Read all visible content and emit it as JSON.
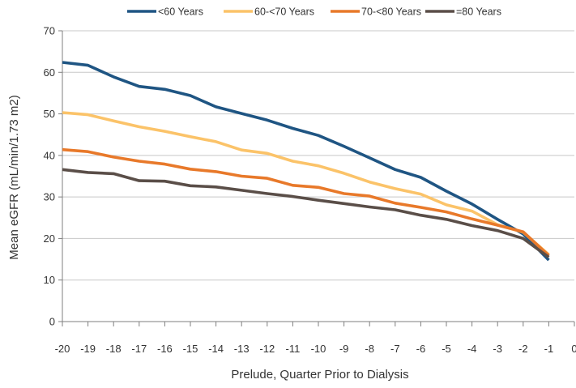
{
  "chart_data": {
    "type": "line",
    "title": "",
    "xlabel": "Prelude, Quarter Prior to Dialysis",
    "ylabel": "Mean eGFR (mL/min/1.73 m2)",
    "xlim": [
      -20,
      0
    ],
    "ylim": [
      0,
      70
    ],
    "x_ticks": [
      -20,
      -19,
      -18,
      -17,
      -16,
      -15,
      -14,
      -13,
      -12,
      -11,
      -10,
      -9,
      -8,
      -7,
      -6,
      -5,
      -4,
      -3,
      -2,
      -1,
      0
    ],
    "y_ticks": [
      0,
      10,
      20,
      30,
      40,
      50,
      60,
      70
    ],
    "grid": "horizontal",
    "legend_position": "top",
    "x": [
      -20,
      -19,
      -18,
      -17,
      -16,
      -15,
      -14,
      -13,
      -12,
      -11,
      -10,
      -9,
      -8,
      -7,
      -6,
      -5,
      -4,
      -3,
      -2,
      -1
    ],
    "series": [
      {
        "name": "<60 Years",
        "color": "#1f5583",
        "values": [
          62.4,
          61.7,
          58.9,
          56.6,
          55.9,
          54.4,
          51.7,
          50.1,
          48.5,
          46.5,
          44.8,
          42.2,
          39.4,
          36.6,
          34.7,
          31.4,
          28.3,
          24.6,
          21.1,
          14.8
        ]
      },
      {
        "name": "60-<70 Years",
        "color": "#fbc369",
        "values": [
          50.3,
          49.8,
          48.3,
          46.9,
          45.8,
          44.5,
          43.3,
          41.3,
          40.5,
          38.6,
          37.5,
          35.7,
          33.6,
          32.0,
          30.7,
          28.1,
          26.6,
          23.3,
          21.5,
          16.1
        ]
      },
      {
        "name": "70-<80 Years",
        "color": "#e8792a",
        "values": [
          41.4,
          40.9,
          39.6,
          38.6,
          37.9,
          36.7,
          36.1,
          35.0,
          34.5,
          32.8,
          32.3,
          30.8,
          30.2,
          28.5,
          27.5,
          26.4,
          24.7,
          23.2,
          21.6,
          15.9
        ]
      },
      {
        "name": "=80 Years",
        "color": "#5a4e48",
        "values": [
          36.6,
          35.9,
          35.6,
          33.9,
          33.8,
          32.7,
          32.4,
          31.6,
          30.8,
          30.1,
          29.2,
          28.4,
          27.6,
          26.9,
          25.6,
          24.6,
          23.1,
          21.9,
          20.0,
          15.5
        ]
      }
    ]
  }
}
